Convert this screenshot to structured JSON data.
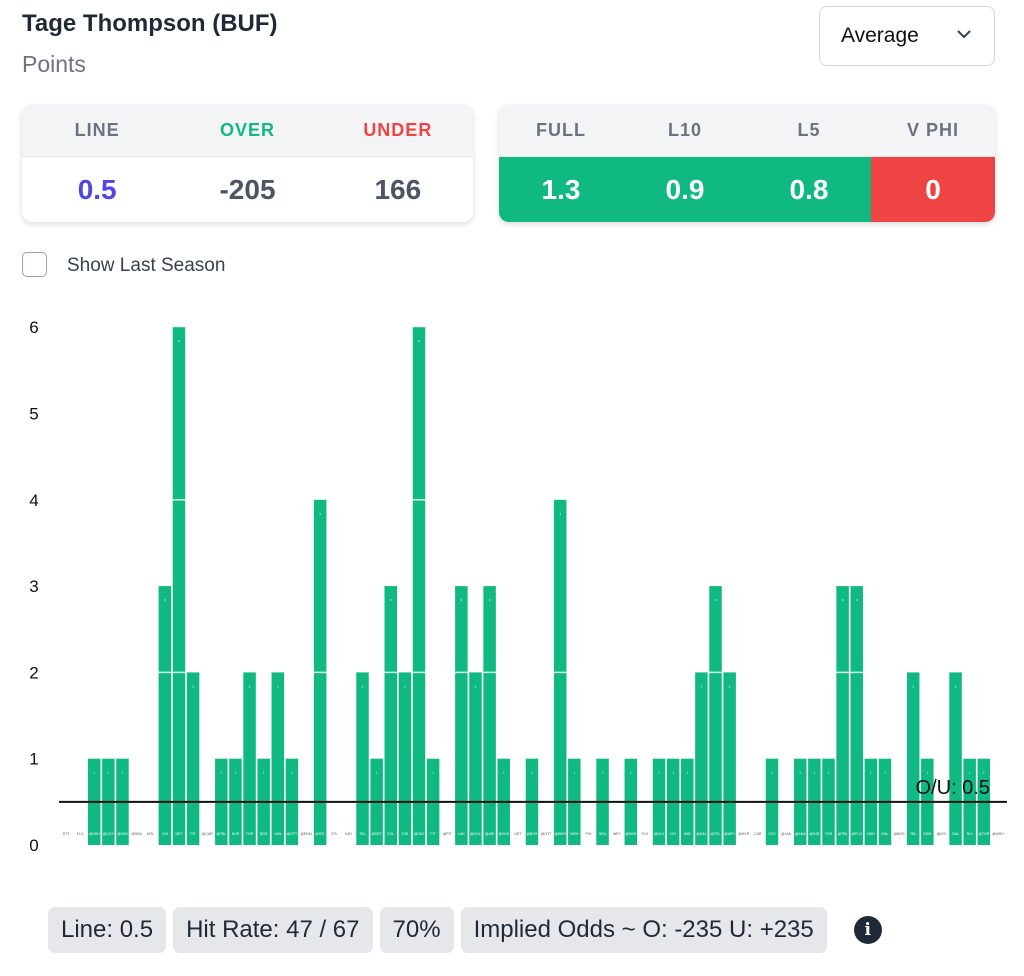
{
  "header": {
    "title": "Tage Thompson (BUF)",
    "subtitle": "Points",
    "dropdown": "Average"
  },
  "line_card": {
    "headers": [
      "LINE",
      "OVER",
      "UNDER"
    ],
    "values": [
      "0.5",
      "-205",
      "166"
    ],
    "colors": [
      "#4f46e5",
      "#4b5563",
      "#4b5563"
    ],
    "header_colors": [
      "#6b7280",
      "#10b981",
      "#ef4444"
    ]
  },
  "avg_card": {
    "headers": [
      "FULL",
      "L10",
      "L5",
      "V PHI"
    ],
    "values": [
      "1.3",
      "0.9",
      "0.8",
      "0"
    ],
    "colors": [
      "#10b981",
      "#10b981",
      "#10b981",
      "#ef4444"
    ]
  },
  "show_last_season": {
    "label": "Show Last Season",
    "checked": false
  },
  "chart_data": {
    "type": "bar",
    "ylim": [
      0,
      6.2
    ],
    "yticks": [
      "0",
      "1",
      "2",
      "3",
      "4",
      "5",
      "6"
    ],
    "line_value": 0.5,
    "line_label": "O/U: 0.5",
    "bar_color": "#10b981",
    "categories": [
      "DTT",
      "FLO",
      "@NSH",
      "@CGY",
      "@VAN",
      "@SEA",
      "MTL",
      "CHI",
      "DET",
      "PIT",
      "@CAR",
      "@TBL",
      "NYR",
      "TOR",
      "BOS",
      "VAN",
      "@OTT",
      "@EDM",
      "@STL",
      "STL",
      "NJD",
      "TBL",
      "@DET",
      "COL",
      "SJS",
      "@CBJ",
      "PIT",
      "@PIT",
      "LAK",
      "@COL",
      "@ARI",
      "@VGK",
      "DET",
      "@BOS",
      "@OTT",
      "@WSH",
      "WSH",
      "PHI",
      "SEA",
      "WPJ",
      "@NSH",
      "FLO",
      "@CHI",
      "NYI",
      "MIN",
      "@DAL",
      "@STL",
      "@WPJ",
      "@NYR",
      "CAR",
      "CGY",
      "@LAK",
      "@ANA",
      "@SJS",
      "TOR",
      "@TBL",
      "@FLO",
      "NSH",
      "DAL",
      "@BOS",
      "TBL",
      "EDM",
      "@NYI",
      "DAL",
      "NYI",
      "@TOR",
      "@WSH"
    ],
    "values": [
      0,
      0,
      1,
      1,
      1,
      0,
      0,
      3,
      6,
      2,
      0,
      1,
      1,
      2,
      1,
      2,
      1,
      0,
      4,
      0,
      0,
      2,
      1,
      3,
      2,
      6,
      1,
      0,
      3,
      2,
      3,
      1,
      0,
      1,
      0,
      4,
      1,
      0,
      1,
      0,
      1,
      0,
      1,
      1,
      1,
      2,
      3,
      2,
      0,
      0,
      1,
      0,
      1,
      1,
      1,
      3,
      3,
      1,
      1,
      0,
      2,
      1,
      0,
      2,
      1,
      1,
      0
    ]
  },
  "footer": {
    "line": "Line: 0.5",
    "hit_rate": "Hit Rate: 47 / 67",
    "pct": "70%",
    "implied": "Implied Odds ~ O: -235 U: +235",
    "info_icon": "i"
  }
}
